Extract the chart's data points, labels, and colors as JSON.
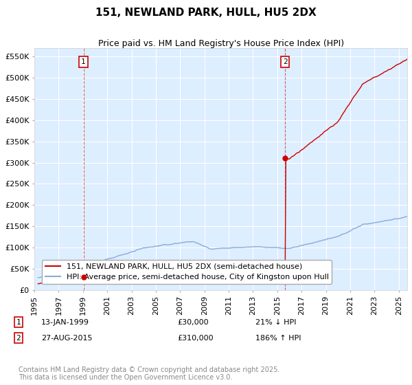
{
  "title": "151, NEWLAND PARK, HULL, HU5 2DX",
  "subtitle": "Price paid vs. HM Land Registry's House Price Index (HPI)",
  "ylabel_ticks": [
    "£0",
    "£50K",
    "£100K",
    "£150K",
    "£200K",
    "£250K",
    "£300K",
    "£350K",
    "£400K",
    "£450K",
    "£500K",
    "£550K"
  ],
  "ytick_values": [
    0,
    50000,
    100000,
    150000,
    200000,
    250000,
    300000,
    350000,
    400000,
    450000,
    500000,
    550000
  ],
  "ylim": [
    0,
    570000
  ],
  "xlim_start": 1995.3,
  "xlim_end": 2025.7,
  "xticks": [
    1995,
    1997,
    1999,
    2001,
    2003,
    2005,
    2007,
    2009,
    2011,
    2013,
    2015,
    2017,
    2019,
    2021,
    2023,
    2025
  ],
  "purchase1_x": 1999.04,
  "purchase1_y": 30000,
  "purchase2_x": 2015.65,
  "purchase2_y": 310000,
  "annotation1": "13-JAN-1999",
  "annotation1_price": "£30,000",
  "annotation1_hpi": "21% ↓ HPI",
  "annotation2": "27-AUG-2015",
  "annotation2_price": "£310,000",
  "annotation2_hpi": "186% ↑ HPI",
  "legend1": "151, NEWLAND PARK, HULL, HU5 2DX (semi-detached house)",
  "legend2": "HPI: Average price, semi-detached house, City of Kingston upon Hull",
  "footer": "Contains HM Land Registry data © Crown copyright and database right 2025.\nThis data is licensed under the Open Government Licence v3.0.",
  "line1_color": "#cc0000",
  "line2_color": "#88aadd",
  "bg_color": "#ffffff",
  "plot_bg_color": "#ddeeff",
  "grid_color": "#ffffff",
  "title_fontsize": 11,
  "subtitle_fontsize": 9,
  "tick_fontsize": 8,
  "legend_fontsize": 8,
  "annotation_fontsize": 8,
  "footer_fontsize": 7
}
